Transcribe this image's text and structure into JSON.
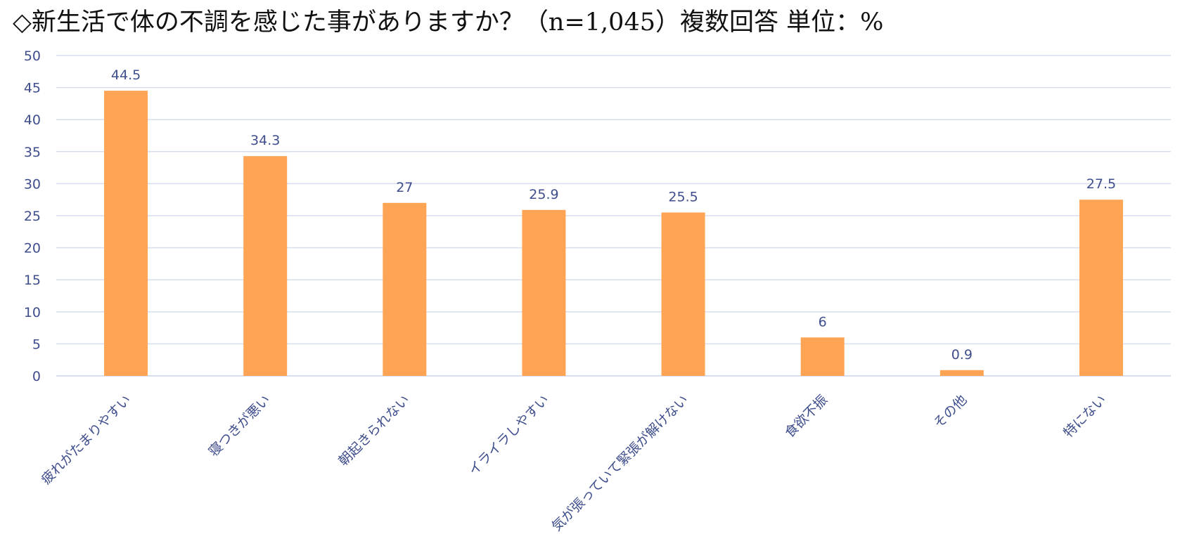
{
  "chart_data": {
    "type": "bar",
    "title": "◇新生活で体の不調を感じた事がありますか？（n=1,045）複数回答 単位：%",
    "categories": [
      "疲れがたまりやすい",
      "寝つきが悪い",
      "朝起きられない",
      "イライラしやすい",
      "気が張っていて緊張が解けない",
      "食欲不振",
      "その他",
      "特にない"
    ],
    "values": [
      44.5,
      34.3,
      27,
      25.9,
      25.5,
      6,
      0.9,
      27.5
    ],
    "data_labels": [
      "44.5",
      "34.3",
      "27",
      "25.9",
      "25.5",
      "6",
      "0.9",
      "27.5"
    ],
    "ylim": [
      0,
      50
    ],
    "yticks": [
      "0",
      "5",
      "10",
      "15",
      "20",
      "25",
      "30",
      "35",
      "40",
      "45",
      "50"
    ],
    "xlabel": "",
    "ylabel": "",
    "grid": true,
    "legend": "none",
    "colors": {
      "bar": "#FFA454",
      "grid": "#D9DEEE",
      "text": "#3F4E8C",
      "title": "#111111"
    }
  }
}
